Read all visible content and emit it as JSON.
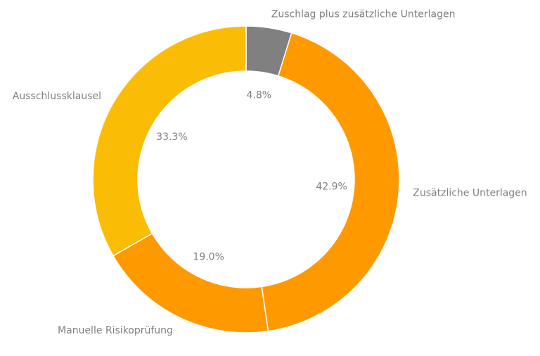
{
  "chart_data": {
    "type": "pie",
    "variant": "donut",
    "title": "",
    "slices": [
      {
        "label": "Zuschlag plus zusätzliche Unterlagen",
        "value": 4.8,
        "display": "4.8%",
        "color": "#808080"
      },
      {
        "label": "Zusätzliche Unterlagen",
        "value": 42.9,
        "display": "42.9%",
        "color": "#FF9900"
      },
      {
        "label": "Manuelle Risikoprüfung",
        "value": 19.0,
        "display": "19.0%",
        "color": "#FF9900"
      },
      {
        "label": "Ausschlussklausel",
        "value": 33.3,
        "display": "33.3%",
        "color": "#FBBC05"
      }
    ],
    "start": "top",
    "direction": "clockwise",
    "legend": "none"
  }
}
